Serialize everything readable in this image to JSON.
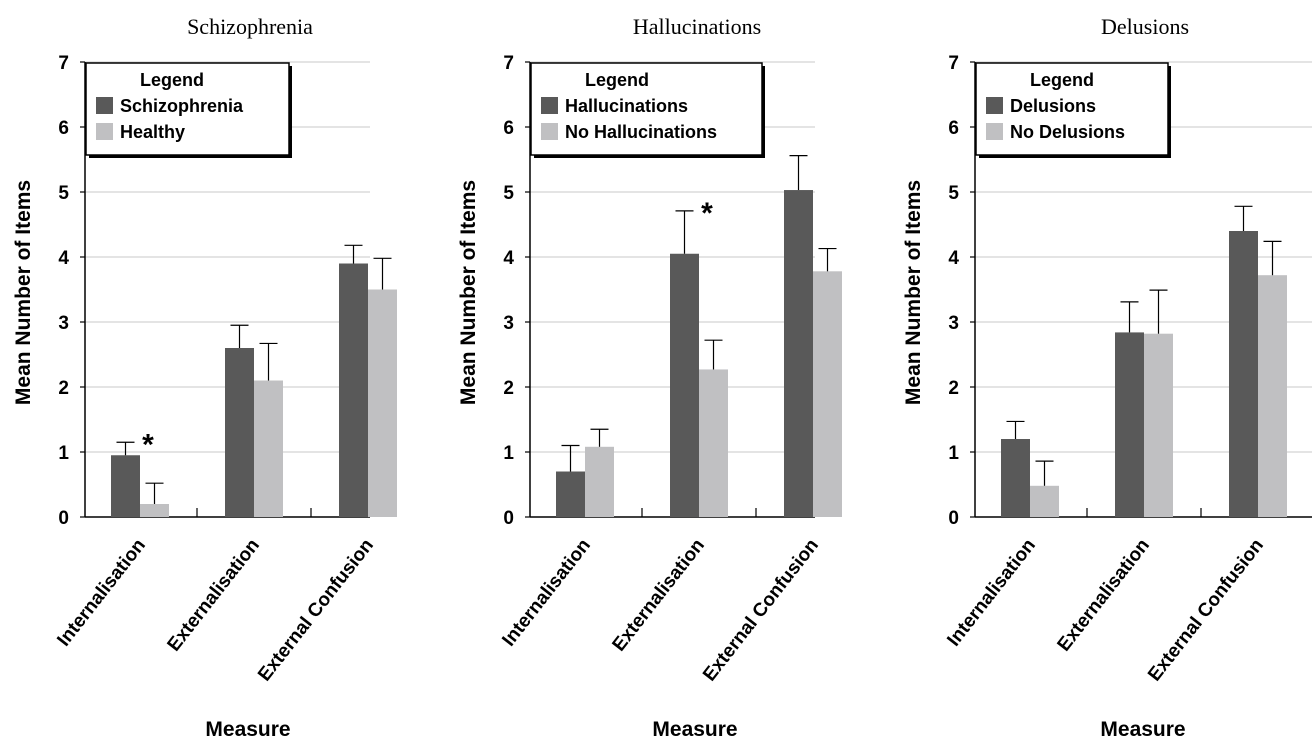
{
  "colors": {
    "dark": "#595959",
    "light": "#c0c0c2",
    "grid": "#c8c8c8",
    "axis": "#000000"
  },
  "chart_data": [
    {
      "type": "bar",
      "title": "Schizophrenia",
      "xlabel": "Measure",
      "ylabel": "Mean Number of Items",
      "ylim": [
        0,
        7
      ],
      "yticks": [
        "0",
        "1",
        "2",
        "3",
        "4",
        "5",
        "6",
        "7"
      ],
      "grid": true,
      "categories": [
        "Internalisation",
        "Externalisation",
        "External Confusion"
      ],
      "legend": {
        "title": "Legend",
        "placement": "top-left"
      },
      "series": [
        {
          "name": "Schizophrenia",
          "values": [
            0.95,
            2.6,
            3.9
          ],
          "errors": [
            0.2,
            0.35,
            0.28
          ]
        },
        {
          "name": "Healthy",
          "values": [
            0.2,
            2.1,
            3.5
          ],
          "errors": [
            0.32,
            0.57,
            0.48
          ]
        }
      ],
      "significance": [
        {
          "category": 0,
          "label": "*"
        }
      ]
    },
    {
      "type": "bar",
      "title": "Hallucinations",
      "xlabel": "Measure",
      "ylabel": "Mean Number of Items",
      "ylim": [
        0,
        7
      ],
      "yticks": [
        "0",
        "1",
        "2",
        "3",
        "4",
        "5",
        "6",
        "7"
      ],
      "grid": true,
      "categories": [
        "Internalisation",
        "Externalisation",
        "External Confusion"
      ],
      "legend": {
        "title": "Legend",
        "placement": "top-left"
      },
      "series": [
        {
          "name": "Hallucinations",
          "values": [
            0.7,
            4.05,
            5.03
          ],
          "errors": [
            0.4,
            0.66,
            0.53
          ]
        },
        {
          "name": "No Hallucinations",
          "values": [
            1.08,
            2.27,
            3.78
          ],
          "errors": [
            0.27,
            0.45,
            0.35
          ]
        }
      ],
      "significance": [
        {
          "category": 1,
          "label": "*"
        }
      ]
    },
    {
      "type": "bar",
      "title": "Delusions",
      "xlabel": "Measure",
      "ylabel": "Mean Number of Items",
      "ylim": [
        0,
        7
      ],
      "yticks": [
        "0",
        "1",
        "2",
        "3",
        "4",
        "5",
        "6",
        "7"
      ],
      "grid": true,
      "categories": [
        "Internalisation",
        "Externalisation",
        "External Confusion"
      ],
      "legend": {
        "title": "Legend",
        "placement": "top-left"
      },
      "series": [
        {
          "name": "Delusions",
          "values": [
            1.2,
            2.84,
            4.4
          ],
          "errors": [
            0.27,
            0.47,
            0.38
          ]
        },
        {
          "name": "No Delusions",
          "values": [
            0.48,
            2.82,
            3.72
          ],
          "errors": [
            0.38,
            0.67,
            0.52
          ]
        }
      ],
      "significance": []
    }
  ]
}
